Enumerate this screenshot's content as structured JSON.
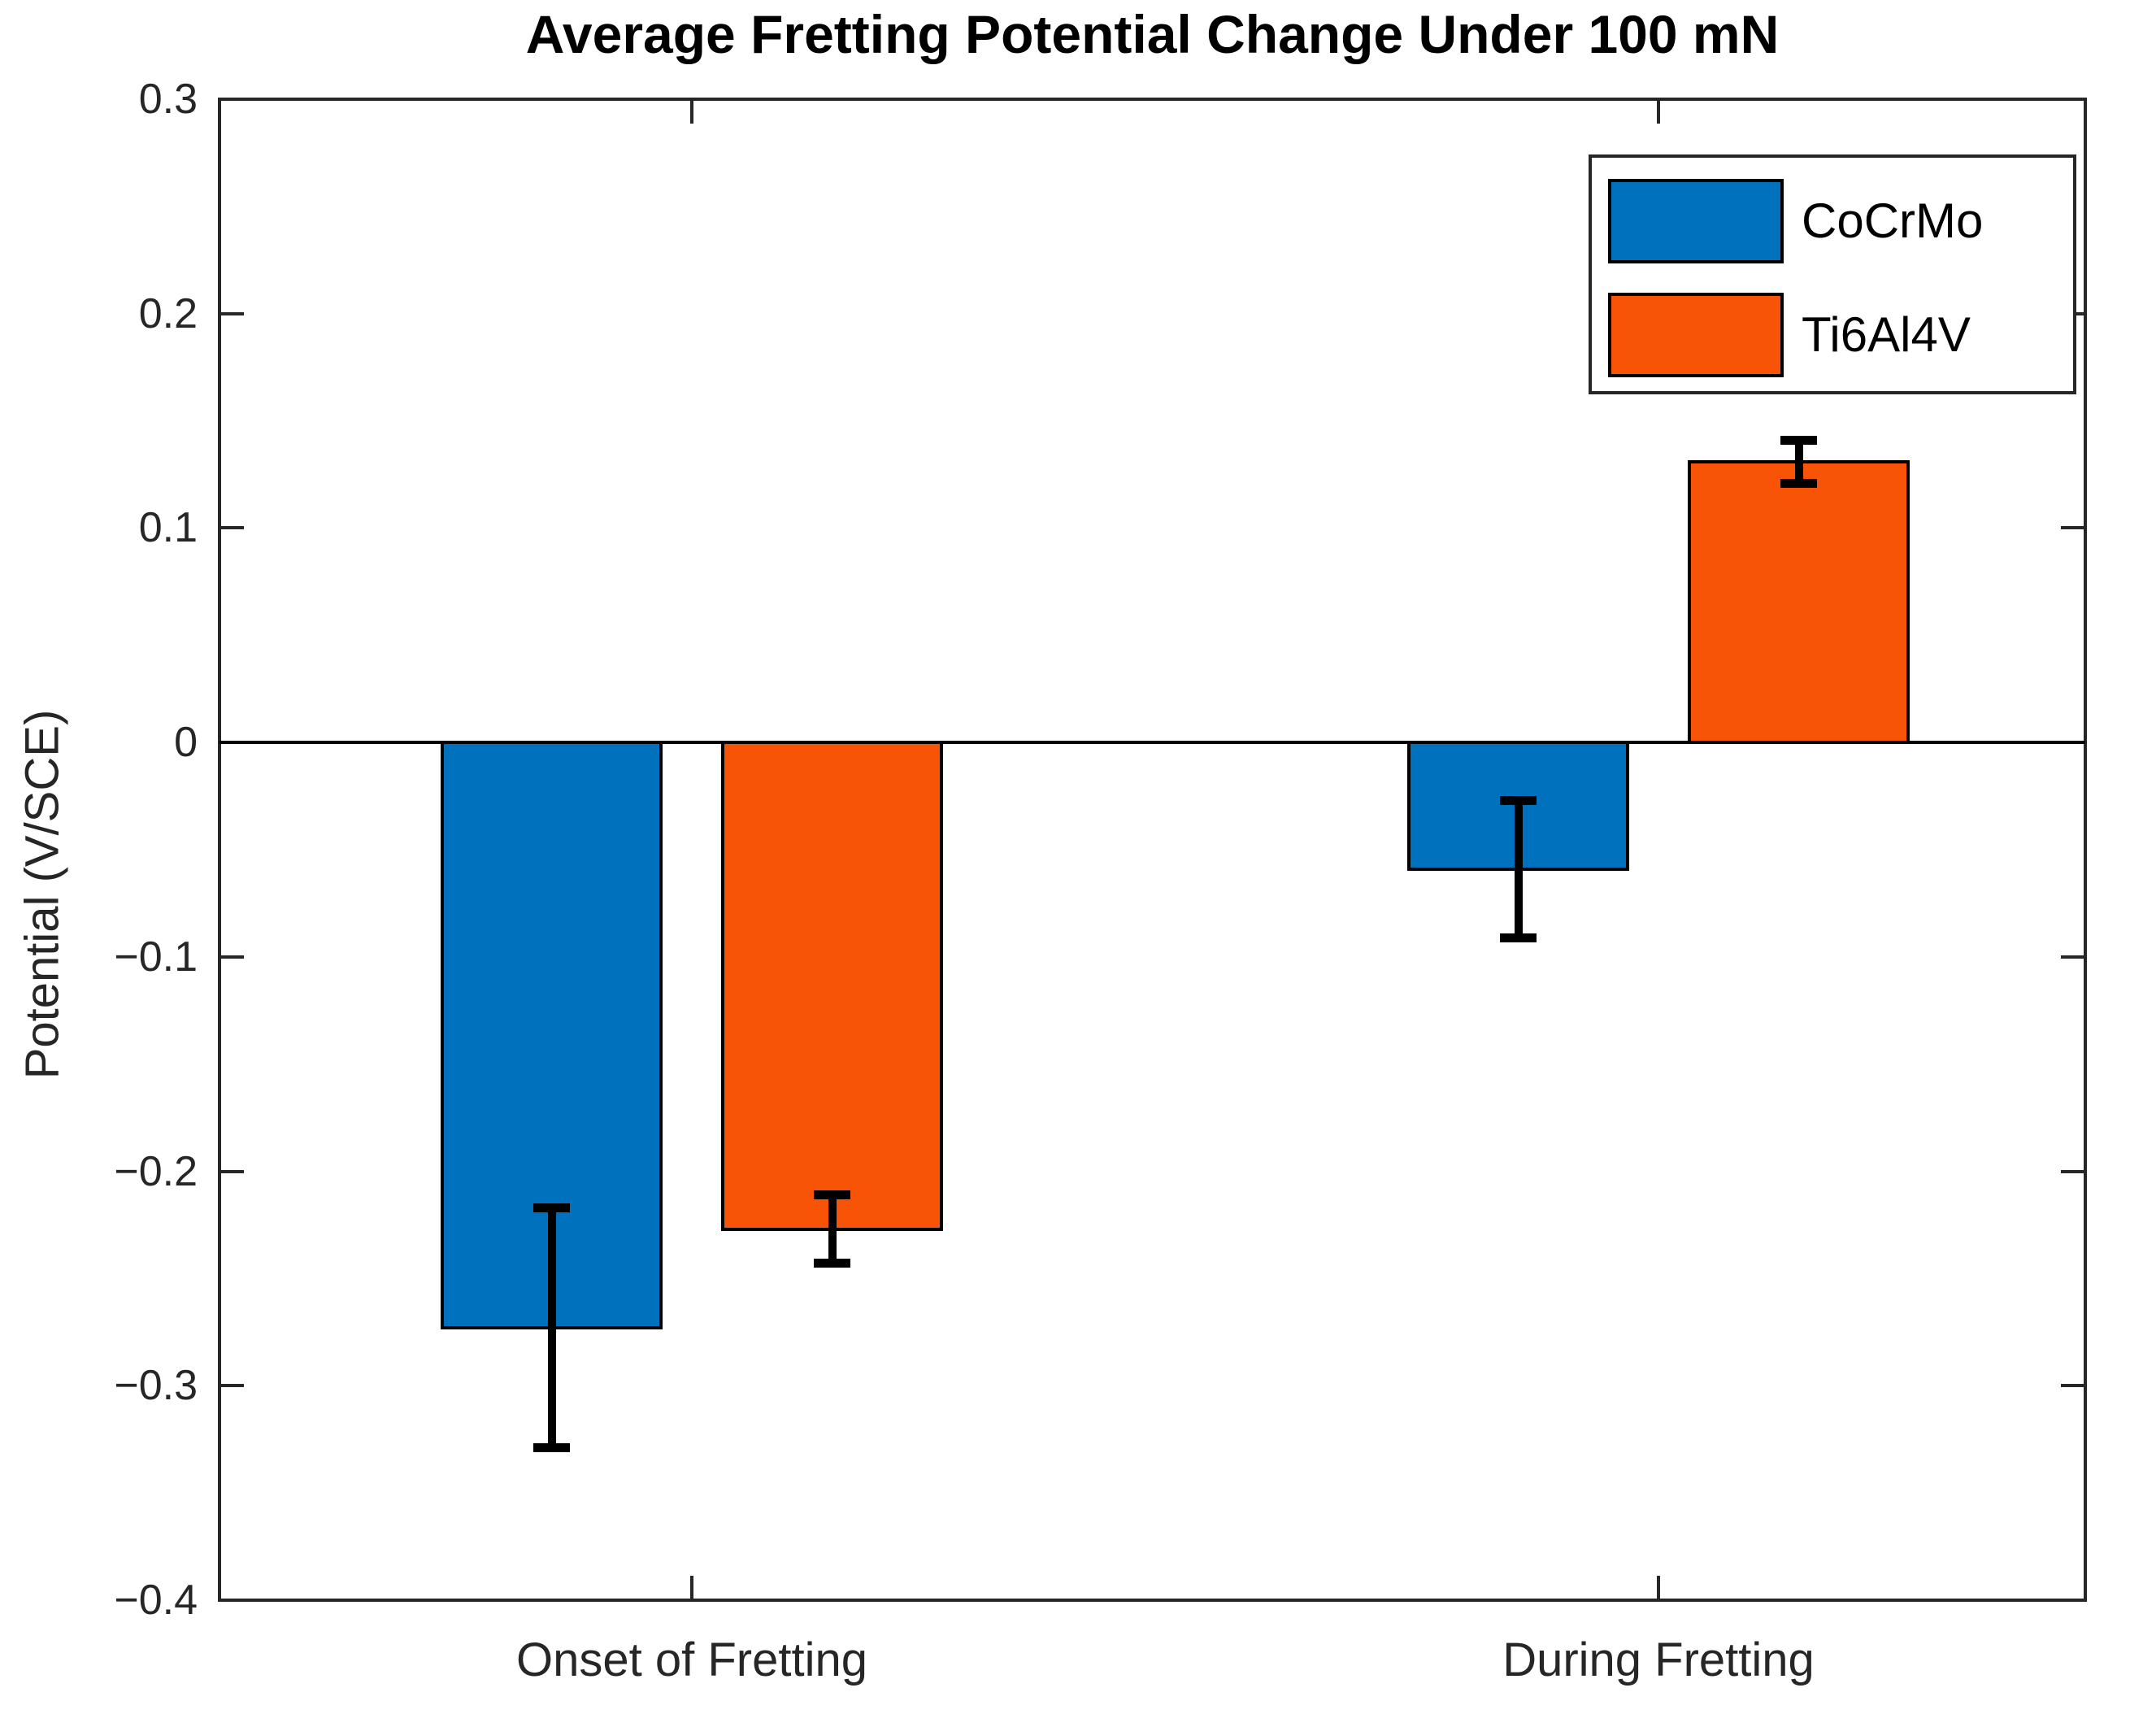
{
  "chart_data": {
    "type": "bar",
    "title": "Average Fretting Potential Change Under 100 mN",
    "xlabel": "",
    "ylabel": "Potential (V/SCE)",
    "categories": [
      "Onset of Fretting",
      "During Fretting"
    ],
    "series": [
      {
        "name": "CoCrMo",
        "color": "#0072BD",
        "values": [
          -0.273,
          -0.059
        ],
        "errors": [
          0.056,
          0.032
        ]
      },
      {
        "name": "Ti6Al4V",
        "color": "#F85408",
        "values": [
          -0.227,
          0.131
        ],
        "errors": [
          0.016,
          0.01
        ]
      }
    ],
    "ylim": [
      -0.4,
      0.3
    ],
    "yticks": [
      0.3,
      0.2,
      0.1,
      0,
      -0.1,
      -0.2,
      -0.3,
      -0.4
    ],
    "ytick_labels": [
      "0.3",
      "0.2",
      "0.1",
      "0",
      "−0.1",
      "−0.2",
      "−0.3",
      "−0.4"
    ],
    "grid": false,
    "baseline": 0,
    "error_bars": true,
    "legend": {
      "position": "top-right",
      "entries": [
        "CoCrMo",
        "Ti6Al4V"
      ]
    }
  },
  "style": {
    "background": "#FFFFFF",
    "axis_color": "#262626",
    "bar_edge_color": "#000000",
    "errorbar_color": "#000000"
  }
}
